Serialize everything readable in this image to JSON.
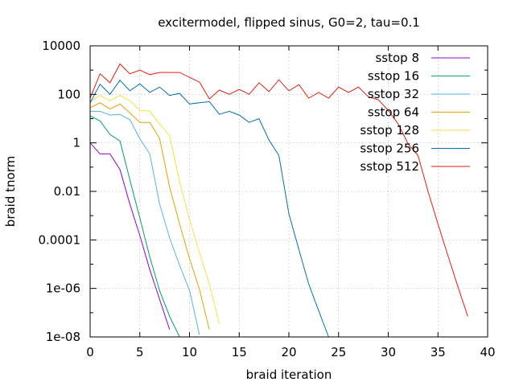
{
  "chart_data": {
    "type": "line",
    "title": "excitermodel, flipped sinus, G0=2, tau=0.1",
    "xlabel": "braid iteration",
    "ylabel": "braid tnorm",
    "xlim": [
      0,
      40
    ],
    "ylim": [
      1e-08,
      10000
    ],
    "y_scale": "log",
    "grid": true,
    "legend_position": "top-right",
    "x_ticks": [
      "0",
      "5",
      "10",
      "15",
      "20",
      "25",
      "30",
      "35",
      "40"
    ],
    "y_ticks": [
      "1e-08",
      "1e-06",
      "0.0001",
      "0.01",
      "1",
      "100",
      "10000"
    ],
    "series": [
      {
        "name": "sstop 8",
        "color": "#9400d3",
        "x": [
          0,
          1,
          2,
          3,
          4,
          5,
          6,
          7,
          8
        ],
        "y": [
          1.0,
          0.35,
          0.35,
          0.08,
          0.003,
          0.00015,
          6e-06,
          3.5e-07,
          2e-08
        ]
      },
      {
        "name": "sstop 16",
        "color": "#009e73",
        "x": [
          0,
          1,
          2,
          3,
          4,
          5,
          6,
          7,
          8,
          9
        ],
        "y": [
          13,
          8,
          2.2,
          1.2,
          0.03,
          0.0008,
          2e-05,
          8e-07,
          7e-08,
          1e-08
        ]
      },
      {
        "name": "sstop 32",
        "color": "#56b4e9",
        "x": [
          0,
          1,
          2,
          3,
          4,
          5,
          6,
          7,
          8,
          9,
          10,
          11
        ],
        "y": [
          20,
          20,
          14,
          15,
          9,
          1.5,
          0.35,
          0.003,
          0.00012,
          9e-06,
          8.5e-07,
          1.2e-08
        ]
      },
      {
        "name": "sstop 64",
        "color": "#e69f00",
        "x": [
          0,
          1,
          2,
          3,
          4,
          5,
          6,
          7,
          8,
          9,
          10,
          11,
          12
        ],
        "y": [
          28,
          45,
          25,
          40,
          17,
          7,
          7,
          1.5,
          0.015,
          0.00045,
          1.7e-05,
          9e-07,
          2e-08
        ]
      },
      {
        "name": "sstop 128",
        "color": "#f0e442",
        "x": [
          0,
          1,
          2,
          3,
          4,
          5,
          6,
          7,
          8,
          9,
          10,
          11,
          12,
          13
        ],
        "y": [
          50,
          90,
          55,
          90,
          55,
          22,
          20,
          6,
          2,
          0.025,
          0.0007,
          3e-05,
          1.5e-06,
          3.5e-08
        ]
      },
      {
        "name": "sstop 256",
        "color": "#0072b2",
        "x": [
          0,
          1,
          2,
          3,
          4,
          5,
          6,
          7,
          8,
          9,
          10,
          11,
          12,
          13,
          14,
          15,
          16,
          17,
          18,
          19,
          20,
          21,
          22,
          23,
          24
        ],
        "y": [
          45,
          260,
          100,
          380,
          140,
          270,
          120,
          200,
          90,
          110,
          40,
          45,
          50,
          15,
          20,
          14,
          7,
          10,
          1.3,
          0.3,
          0.0012,
          4e-05,
          1.5e-06,
          1.2e-07,
          1e-08
        ]
      },
      {
        "name": "sstop 512",
        "color": "#e51e10",
        "x": [
          0,
          1,
          2,
          3,
          4,
          5,
          6,
          7,
          8,
          9,
          10,
          11,
          12,
          13,
          14,
          15,
          16,
          17,
          18,
          19,
          20,
          21,
          22,
          23,
          24,
          25,
          26,
          27,
          28,
          29,
          30,
          31,
          32,
          33,
          34,
          35,
          36,
          37,
          38
        ],
        "y": [
          70,
          700,
          300,
          1800,
          700,
          1000,
          650,
          800,
          800,
          800,
          500,
          320,
          65,
          150,
          100,
          160,
          100,
          300,
          130,
          400,
          140,
          250,
          70,
          120,
          70,
          200,
          120,
          200,
          80,
          60,
          22,
          6,
          0.9,
          0.3,
          0.01,
          0.00045,
          2.3e-05,
          1.2e-06,
          7e-08
        ]
      }
    ]
  }
}
